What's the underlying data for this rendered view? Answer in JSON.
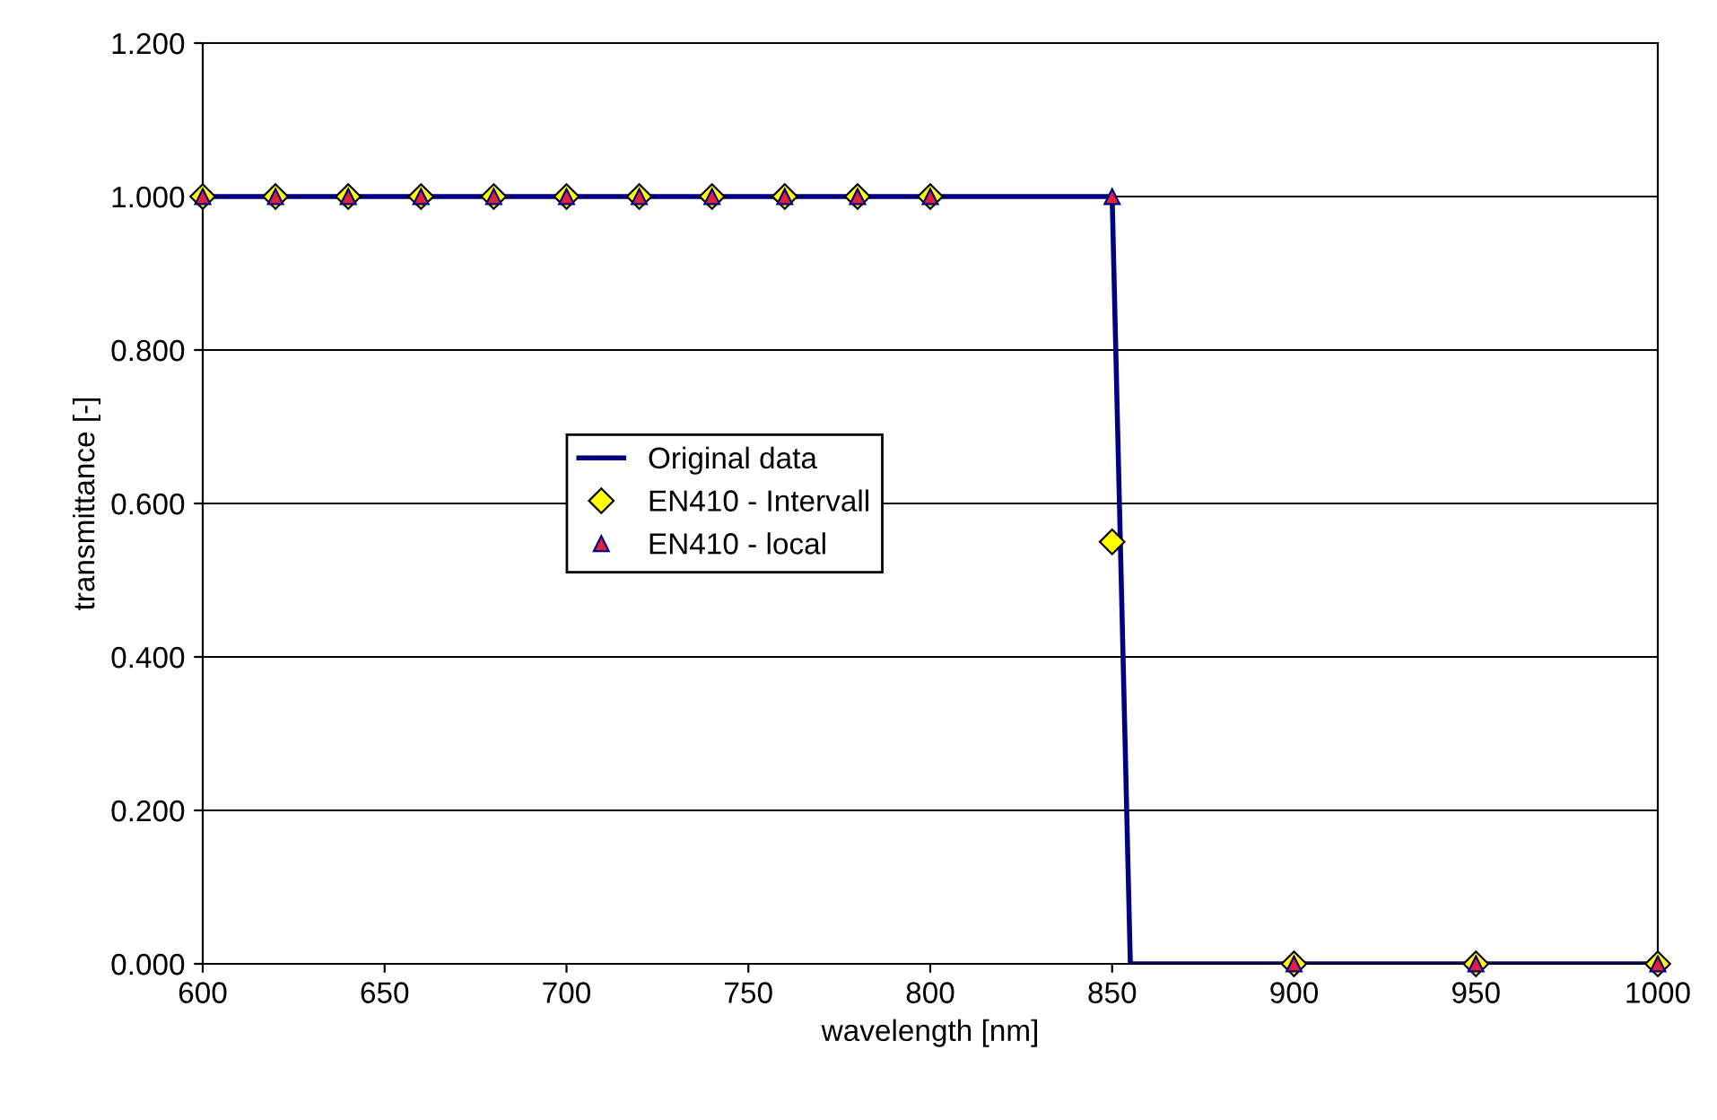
{
  "chart_data": {
    "type": "line",
    "xlabel": "wavelength [nm]",
    "ylabel": "transmittance [-]",
    "xlim": [
      600,
      1000
    ],
    "xticks": [
      600,
      650,
      700,
      750,
      800,
      850,
      900,
      950,
      1000
    ],
    "ylim": [
      0,
      1.2
    ],
    "yticks": [
      {
        "value": 0,
        "label": "0.000"
      },
      {
        "value": 0.2,
        "label": "0.200"
      },
      {
        "value": 0.4,
        "label": "0.400"
      },
      {
        "value": 0.6,
        "label": "0.600"
      },
      {
        "value": 0.8,
        "label": "0.800"
      },
      {
        "value": 1.0,
        "label": "1.000"
      },
      {
        "value": 1.2,
        "label": "1.200"
      }
    ],
    "grid": "y",
    "legend": "center left",
    "series": [
      {
        "name": "Original data",
        "color": "#000080",
        "marker": "none",
        "line_style": "solid",
        "x": [
          600,
          850,
          855,
          1000
        ],
        "values": [
          1.0,
          1.0,
          0.0,
          0.0
        ]
      },
      {
        "name": "EN410 - Intervall",
        "type": "scatter",
        "color": "#ffff00",
        "marker": "diamond",
        "x": [
          600,
          620,
          640,
          660,
          680,
          700,
          720,
          740,
          760,
          780,
          800,
          850,
          900,
          950,
          1000
        ],
        "values": [
          1,
          1,
          1,
          1,
          1,
          1,
          1,
          1,
          1,
          1,
          1,
          0.55,
          0,
          0,
          0
        ]
      },
      {
        "name": "EN410 - local",
        "type": "scatter",
        "color": "#e0203c",
        "marker": "triangle",
        "x": [
          600,
          620,
          640,
          660,
          680,
          700,
          720,
          740,
          760,
          780,
          800,
          850,
          900,
          950,
          1000
        ],
        "values": [
          1,
          1,
          1,
          1,
          1,
          1,
          1,
          1,
          1,
          1,
          1,
          1,
          0,
          0,
          0
        ]
      }
    ]
  }
}
